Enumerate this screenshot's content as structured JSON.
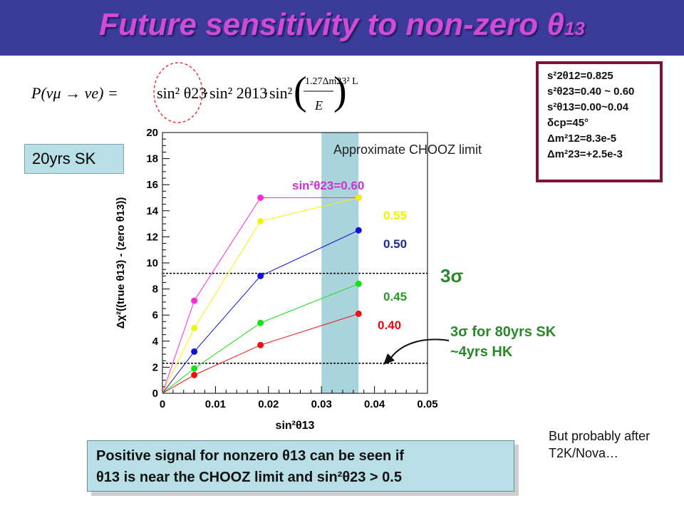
{
  "header": {
    "title_main": "Future sensitivity to non-zero θ",
    "title_sub": "13"
  },
  "formula": {
    "lhs": "P(νμ → νe) =",
    "term1": "sin² θ23",
    "dot": "·",
    "term2": "sin² 2θ13",
    "term3": "sin²",
    "numerator": "1.27Δm23² L",
    "denominator": "E"
  },
  "params": [
    "s²2θ12=0.825",
    "s²θ23=0.40 ~ 0.60",
    "s²θ13=0.00~0.04",
    "δcp=45°",
    "Δm²12=8.3e-5",
    "Δm²23=+2.5e-3"
  ],
  "badge": "20yrs SK",
  "annotations": {
    "chooz": "Approximate CHOOZ limit",
    "three_sigma": "3σ",
    "three_sigma_80_line1": "3σ for 80yrs SK",
    "three_sigma_80_line2": "~4yrs HK"
  },
  "bottom_text": {
    "line1": "Positive signal for nonzero θ13 can be seen if",
    "line2": "θ13 is near the CHOOZ limit and sin²θ23 > 0.5"
  },
  "note": "But probably after T2K/Nova…",
  "colors": {
    "title": "#d14bd8",
    "header_bg": "#3b3b9a",
    "band": "#a9d4db",
    "annotation_green": "#2a8a2a"
  },
  "chart_data": {
    "type": "line",
    "xlabel": "sin²θ13",
    "ylabel": "Δχ²((true θ13) - (zero θ13))",
    "xlim": [
      0,
      0.05
    ],
    "ylim": [
      0,
      20
    ],
    "x_ticks": [
      "0",
      "0.01",
      "0.02",
      "0.03",
      "0.04",
      "0.05"
    ],
    "y_ticks": [
      "0",
      "2",
      "4",
      "6",
      "8",
      "10",
      "12",
      "14",
      "16",
      "18",
      "20"
    ],
    "x": [
      0,
      0.006,
      0.0185,
      0.037
    ],
    "series": [
      {
        "name": "sin²θ23=0.60",
        "color": "#ff2ad8",
        "values": [
          0,
          7.1,
          15.0,
          15.0
        ]
      },
      {
        "name": "0.55",
        "color": "#f2f20a",
        "values": [
          0,
          5.0,
          13.2,
          15.0
        ]
      },
      {
        "name": "0.50",
        "color": "#1010d8",
        "values": [
          0,
          3.2,
          9.0,
          12.5
        ]
      },
      {
        "name": "0.45",
        "color": "#16e016",
        "values": [
          0,
          1.9,
          5.4,
          8.4
        ]
      },
      {
        "name": "0.40",
        "color": "#e81414",
        "values": [
          0,
          1.4,
          3.7,
          6.1
        ]
      }
    ],
    "label_colors": [
      "#cc33cc",
      "#f0f000",
      "#1c2c8c",
      "#2a9a2a",
      "#e01010"
    ],
    "hlines": [
      9.2,
      2.3
    ],
    "band": [
      0.03,
      0.037
    ]
  }
}
